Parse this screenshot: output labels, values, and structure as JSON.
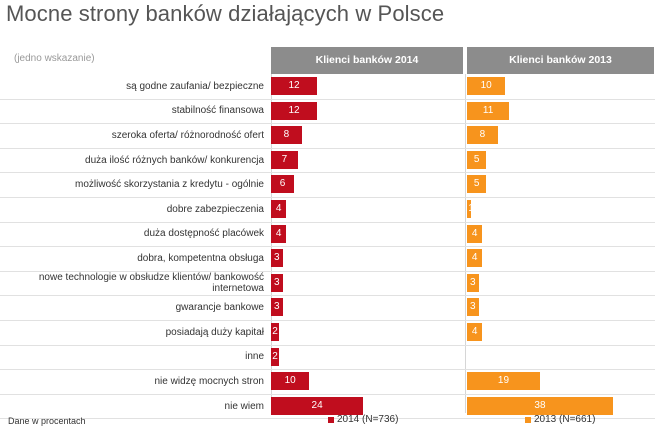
{
  "title": "Mocne strony banków działających w Polsce",
  "note": "(jedno wskazanie)",
  "footer_note": "Dane w procentach",
  "colors": {
    "s2014": "#c00d1e",
    "s2013": "#f7941d",
    "header": "#8c8c8c"
  },
  "chart_data": {
    "type": "bar",
    "orientation": "horizontal",
    "categories": [
      "są godne zaufania/ bezpieczne",
      "stabilność finansowa",
      "szeroka oferta/ różnorodność ofert",
      "duża ilość różnych banków/ konkurencja",
      "możliwość skorzystania z kredytu - ogólnie",
      "dobre zabezpieczenia",
      "duża dostępność placówek",
      "dobra, kompetentna obsługa",
      "nowe technologie w obsłudze klientów/ bankowość internetowa",
      "gwarancje bankowe",
      "posiadają duży kapitał",
      "inne",
      "nie widzę mocnych stron",
      "nie wiem"
    ],
    "series": [
      {
        "name": "2014 (N=736)",
        "header": "Klienci banków 2014",
        "values": [
          12,
          12,
          8,
          7,
          6,
          4,
          4,
          3,
          3,
          3,
          2,
          2,
          10,
          24
        ]
      },
      {
        "name": "2013 (N=661)",
        "header": "Klienci banków 2013",
        "values": [
          10,
          11,
          8,
          5,
          5,
          1,
          4,
          4,
          3,
          3,
          4,
          null,
          19,
          38
        ]
      }
    ],
    "xlim": [
      0,
      50
    ],
    "legend_position": "bottom"
  }
}
